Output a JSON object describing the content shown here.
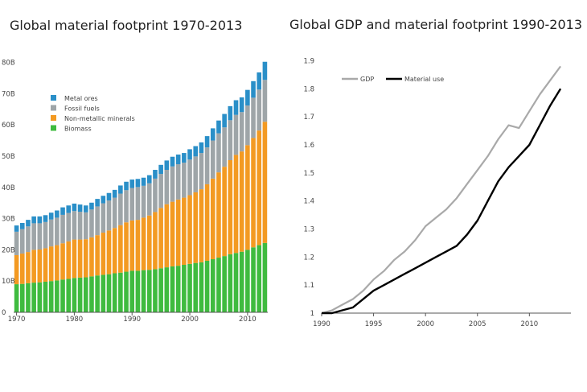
{
  "panels": {
    "left_title": "Global material footprint 1970-2013",
    "right_title": "Global GDP and material footprint 1990-2013"
  },
  "colors": {
    "metal_ores": "#2a8fc8",
    "fossil_fuels": "#9ea5a8",
    "non_metallic_minerals": "#f39a22",
    "biomass": "#3fbb3f",
    "gdp_line": "#a9a9a9",
    "material_line": "#000000"
  },
  "chart_data": [
    {
      "type": "bar",
      "stacked": true,
      "title": "Global material footprint 1970-2013",
      "x": [
        1970,
        1971,
        1972,
        1973,
        1974,
        1975,
        1976,
        1977,
        1978,
        1979,
        1980,
        1981,
        1982,
        1983,
        1984,
        1985,
        1986,
        1987,
        1988,
        1989,
        1990,
        1991,
        1992,
        1993,
        1994,
        1995,
        1996,
        1997,
        1998,
        1999,
        2000,
        2001,
        2002,
        2003,
        2004,
        2005,
        2006,
        2007,
        2008,
        2009,
        2010,
        2011,
        2012,
        2013
      ],
      "x_tick_labels": [
        "1970",
        "1980",
        "1990",
        "2000",
        "2010"
      ],
      "y_tick_labels": [
        "0",
        "10B",
        "20B",
        "30B",
        "40B",
        "50B",
        "60B",
        "70B",
        "80B"
      ],
      "ylim": [
        0,
        84
      ],
      "y_unit": "billion tonnes",
      "grid": false,
      "legend_position": "top-left",
      "series": [
        {
          "name": "Biomass",
          "color_key": "biomass",
          "values": [
            9.0,
            9.1,
            9.3,
            9.5,
            9.6,
            9.8,
            10.0,
            10.2,
            10.5,
            10.7,
            11.0,
            11.1,
            11.2,
            11.5,
            11.8,
            12.0,
            12.2,
            12.5,
            12.7,
            13.0,
            13.3,
            13.3,
            13.5,
            13.6,
            13.8,
            14.1,
            14.4,
            14.7,
            14.9,
            15.2,
            15.5,
            15.8,
            16.0,
            16.5,
            17.0,
            17.5,
            18.0,
            18.6,
            19.0,
            19.4,
            20.0,
            20.8,
            21.5,
            22.2
          ]
        },
        {
          "name": "Non-metallic minerals",
          "color_key": "non_metallic_minerals",
          "values": [
            9.3,
            9.7,
            10.0,
            10.5,
            10.5,
            10.7,
            11.1,
            11.3,
            11.6,
            12.0,
            12.3,
            12.2,
            12.2,
            12.5,
            12.9,
            13.5,
            14.0,
            14.5,
            15.2,
            15.8,
            16.1,
            16.3,
            16.8,
            17.4,
            18.3,
            19.3,
            20.2,
            20.7,
            21.2,
            21.5,
            22.0,
            22.6,
            23.4,
            24.5,
            25.8,
            27.3,
            28.6,
            30.1,
            31.4,
            32.1,
            33.5,
            35.0,
            36.7,
            38.8
          ]
        },
        {
          "name": "Fossil fuels",
          "color_key": "fossil_fuels",
          "values": [
            7.5,
            7.8,
            8.2,
            8.5,
            8.4,
            8.4,
            8.6,
            8.8,
            9.1,
            9.1,
            9.1,
            8.9,
            8.6,
            8.9,
            9.2,
            9.4,
            9.6,
            9.7,
            10.1,
            10.3,
            10.4,
            10.5,
            10.2,
            10.3,
            10.7,
            10.9,
            11.0,
            11.3,
            11.3,
            11.2,
            11.4,
            11.5,
            11.6,
            11.8,
            12.2,
            12.5,
            12.6,
            12.8,
            12.8,
            12.6,
            12.7,
            12.9,
            13.1,
            13.4
          ]
        },
        {
          "name": "Metal ores",
          "color_key": "metal_ores",
          "values": [
            2.0,
            2.0,
            2.1,
            2.2,
            2.2,
            2.2,
            2.2,
            2.3,
            2.4,
            2.4,
            2.4,
            2.3,
            2.2,
            2.2,
            2.4,
            2.4,
            2.4,
            2.5,
            2.6,
            2.7,
            2.7,
            2.6,
            2.6,
            2.6,
            2.8,
            2.9,
            3.0,
            3.1,
            3.1,
            3.1,
            3.3,
            3.3,
            3.4,
            3.6,
            3.9,
            4.1,
            4.3,
            4.5,
            4.7,
            4.7,
            5.0,
            5.3,
            5.5,
            5.8
          ]
        }
      ]
    },
    {
      "type": "line",
      "title": "Global GDP and material footprint 1990-2013",
      "x": [
        1990,
        1991,
        1992,
        1993,
        1994,
        1995,
        1996,
        1997,
        1998,
        1999,
        2000,
        2001,
        2002,
        2003,
        2004,
        2005,
        2006,
        2007,
        2008,
        2009,
        2010,
        2011,
        2012,
        2013
      ],
      "x_tick_labels": [
        "1990",
        "1995",
        "2000",
        "2005",
        "2010"
      ],
      "y_tick_labels": [
        "1",
        "1.1",
        "1.2",
        "1.3",
        "1.4",
        "1.5",
        "1.6",
        "1.7",
        "1.8",
        "1.9"
      ],
      "ylim": [
        1.0,
        1.93
      ],
      "xlim": [
        1990,
        2014
      ],
      "grid": false,
      "legend_position": "top-left",
      "series": [
        {
          "name": "GDP",
          "color_key": "gdp_line",
          "values": [
            1.0,
            1.01,
            1.03,
            1.05,
            1.08,
            1.12,
            1.15,
            1.19,
            1.22,
            1.26,
            1.31,
            1.34,
            1.37,
            1.41,
            1.46,
            1.51,
            1.56,
            1.62,
            1.67,
            1.66,
            1.72,
            1.78,
            1.83,
            1.88
          ]
        },
        {
          "name": "Material use",
          "color_key": "material_line",
          "values": [
            1.0,
            1.0,
            1.01,
            1.02,
            1.05,
            1.08,
            1.1,
            1.12,
            1.14,
            1.16,
            1.18,
            1.2,
            1.22,
            1.24,
            1.28,
            1.33,
            1.4,
            1.47,
            1.52,
            1.56,
            1.6,
            1.67,
            1.74,
            1.8
          ]
        }
      ]
    }
  ]
}
